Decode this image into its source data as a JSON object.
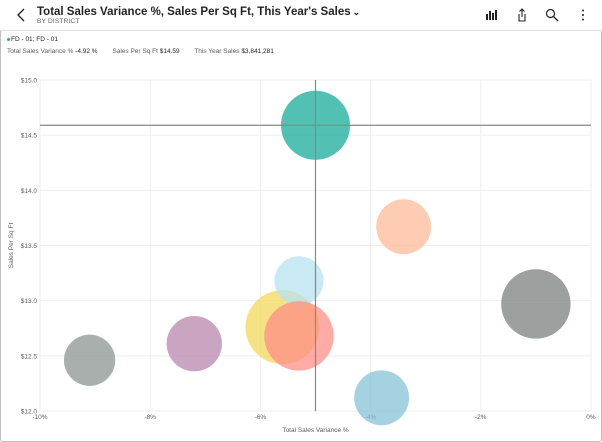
{
  "header": {
    "title": "Total Sales Variance %, Sales Per Sq Ft, This Year's Sales",
    "subtitle": "BY DISTRICT"
  },
  "legend": {
    "label": "FD - 01; FD - 01",
    "color": "#1aab9b"
  },
  "stats": [
    {
      "label": "Total Sales Variance %",
      "value": "-4.92 %"
    },
    {
      "label": "Sales Per Sq Ft",
      "value": "$14.59"
    },
    {
      "label": "This Year Sales",
      "value": "$3,841,281"
    }
  ],
  "toolbar": {
    "icons": [
      "visual-type-icon",
      "share-icon",
      "search-icon",
      "more-options-icon"
    ]
  },
  "chart_data": {
    "type": "scatter",
    "xlabel": "Total Sales Variance %",
    "ylabel": "Sales Per Sq Ft",
    "xlim": [
      -10,
      0
    ],
    "ylim": [
      12.0,
      15.0
    ],
    "x_ticks": [
      "-10%",
      "-8%",
      "-6%",
      "-4%",
      "-2%",
      "0%"
    ],
    "y_ticks": [
      "$12.0",
      "$12.5",
      "$13.0",
      "$13.5",
      "$14.0",
      "$14.5",
      "$15.0"
    ],
    "crosshair": {
      "x": -5.0,
      "y": 14.59
    },
    "points": [
      {
        "x": -9.1,
        "y": 12.46,
        "size": 0.48,
        "color": "#8c9490"
      },
      {
        "x": -7.2,
        "y": 12.61,
        "size": 0.56,
        "color": "#b887ad"
      },
      {
        "x": -5.6,
        "y": 12.76,
        "size": 1.0,
        "color": "#f2d85b"
      },
      {
        "x": -5.3,
        "y": 13.18,
        "size": 0.44,
        "color": "#b7e1f0"
      },
      {
        "x": -5.3,
        "y": 12.68,
        "size": 0.88,
        "color": "#fd8e87"
      },
      {
        "x": -5.0,
        "y": 14.59,
        "size": 0.87,
        "color": "#1aab9b"
      },
      {
        "x": -3.4,
        "y": 13.67,
        "size": 0.55,
        "color": "#fcbb9a"
      },
      {
        "x": -3.8,
        "y": 12.12,
        "size": 0.55,
        "color": "#86c3d6"
      },
      {
        "x": -1.0,
        "y": 12.97,
        "size": 0.88,
        "color": "#7b807d"
      }
    ]
  }
}
